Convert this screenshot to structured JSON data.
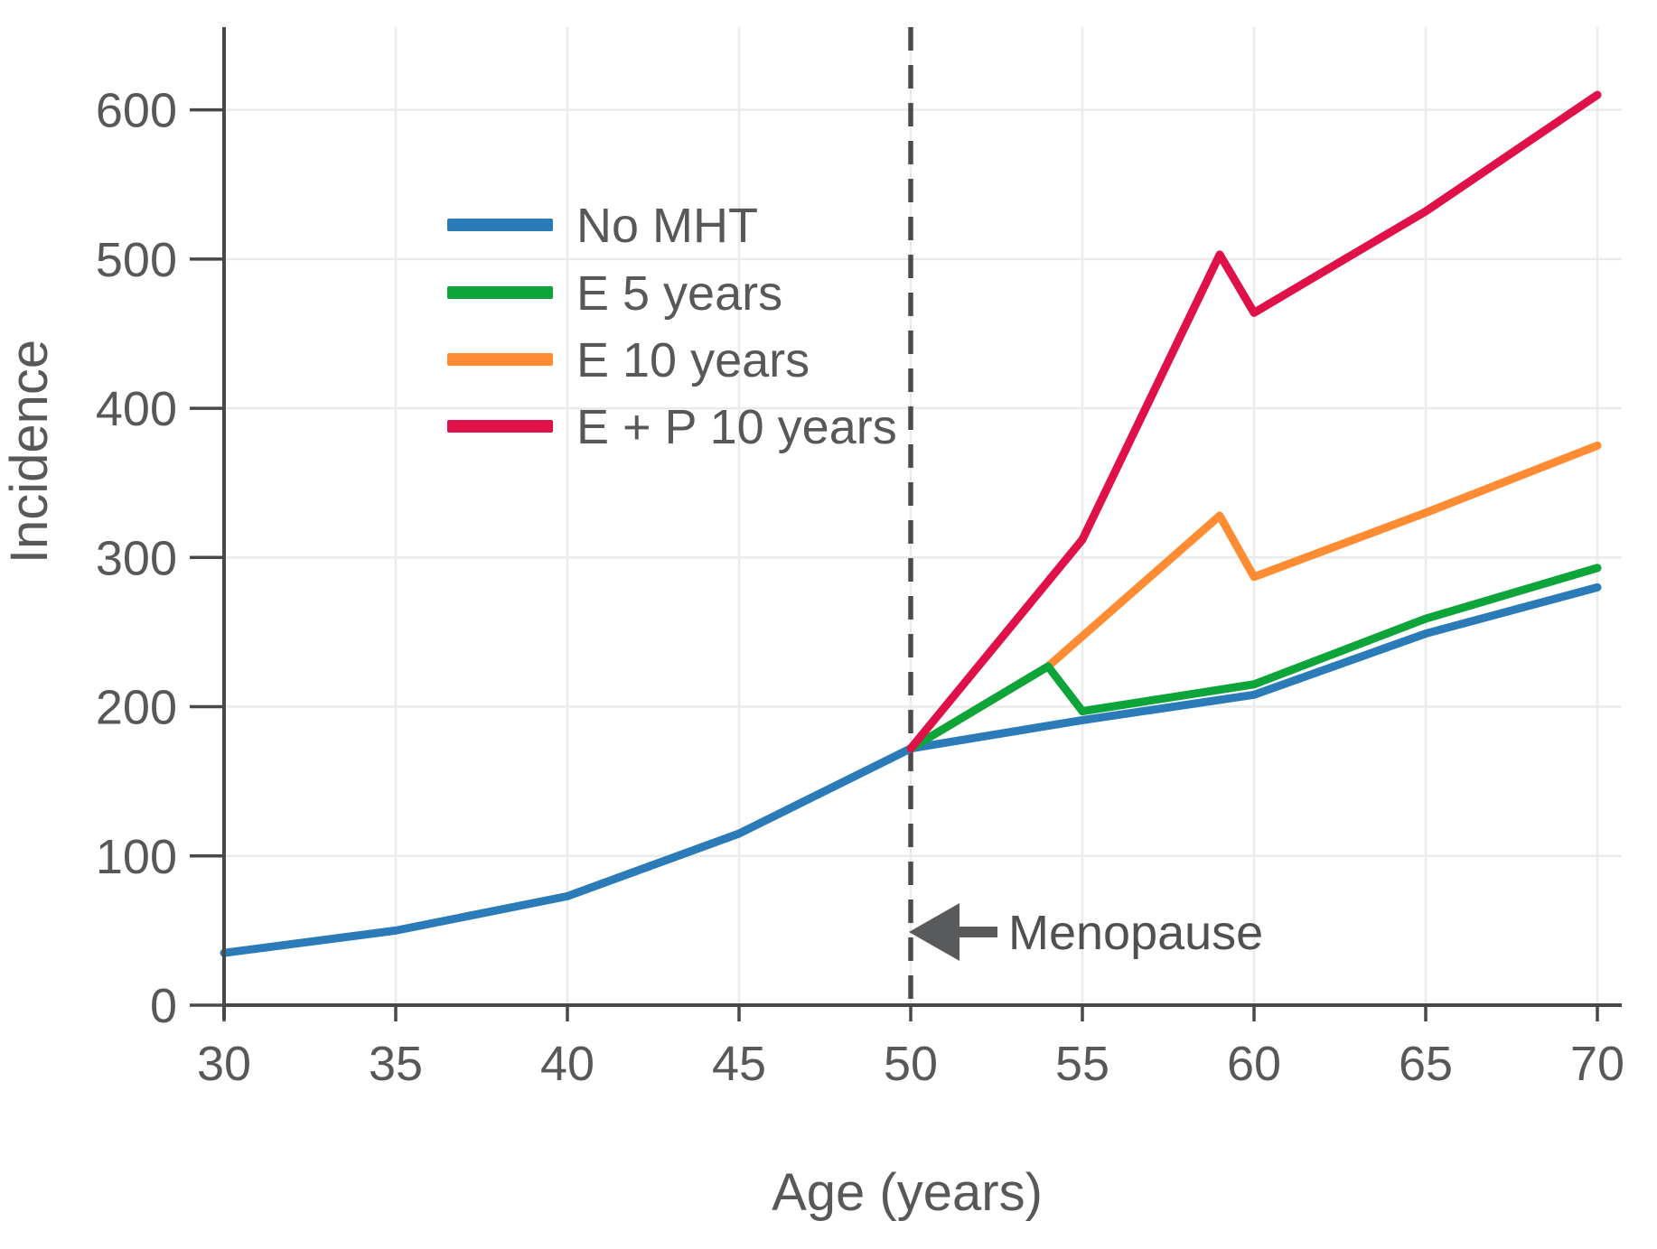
{
  "chart_data": {
    "type": "line",
    "title": "",
    "xlabel": "Age (years)",
    "ylabel": "Incidence",
    "xlim": [
      30,
      70
    ],
    "ylim": [
      0,
      655
    ],
    "x_ticks": [
      30,
      35,
      40,
      45,
      50,
      55,
      60,
      65,
      70
    ],
    "y_ticks": [
      0,
      100,
      200,
      300,
      400,
      500,
      600
    ],
    "grid": true,
    "legend_position": "inside-upper-left",
    "series": [
      {
        "name": "No MHT",
        "color": "#2b7bb9",
        "points": [
          [
            30,
            35
          ],
          [
            35,
            50
          ],
          [
            40,
            73
          ],
          [
            45,
            115
          ],
          [
            50,
            172
          ],
          [
            55,
            191
          ],
          [
            60,
            208
          ],
          [
            65,
            249
          ],
          [
            70,
            280
          ]
        ]
      },
      {
        "name": "E 5 years",
        "color": "#0da53a",
        "points": [
          [
            50,
            172
          ],
          [
            54,
            227
          ],
          [
            55,
            197
          ],
          [
            60,
            215
          ],
          [
            65,
            259
          ],
          [
            70,
            293
          ]
        ]
      },
      {
        "name": "E 10 years",
        "color": "#ff8c33",
        "points": [
          [
            50,
            172
          ],
          [
            54,
            227
          ],
          [
            59,
            328
          ],
          [
            60,
            287
          ],
          [
            65,
            330
          ],
          [
            70,
            375
          ]
        ]
      },
      {
        "name": "E + P 10 years",
        "color": "#e01049",
        "points": [
          [
            50,
            172
          ],
          [
            55,
            312
          ],
          [
            59,
            503
          ],
          [
            60,
            464
          ],
          [
            65,
            532
          ],
          [
            70,
            610
          ]
        ]
      }
    ],
    "draw_order": [
      0,
      2,
      1,
      3
    ],
    "reference_line": {
      "x": 50,
      "style": "dashed",
      "color": "#4b4b4b"
    },
    "annotation": {
      "text": "Menopause",
      "arrow": "left",
      "at_x": 50,
      "at_y": 49
    }
  },
  "colors": {
    "axis": "#47484a",
    "grid": "#ebebeb",
    "text": "#57585a",
    "background": "#ffffff"
  }
}
